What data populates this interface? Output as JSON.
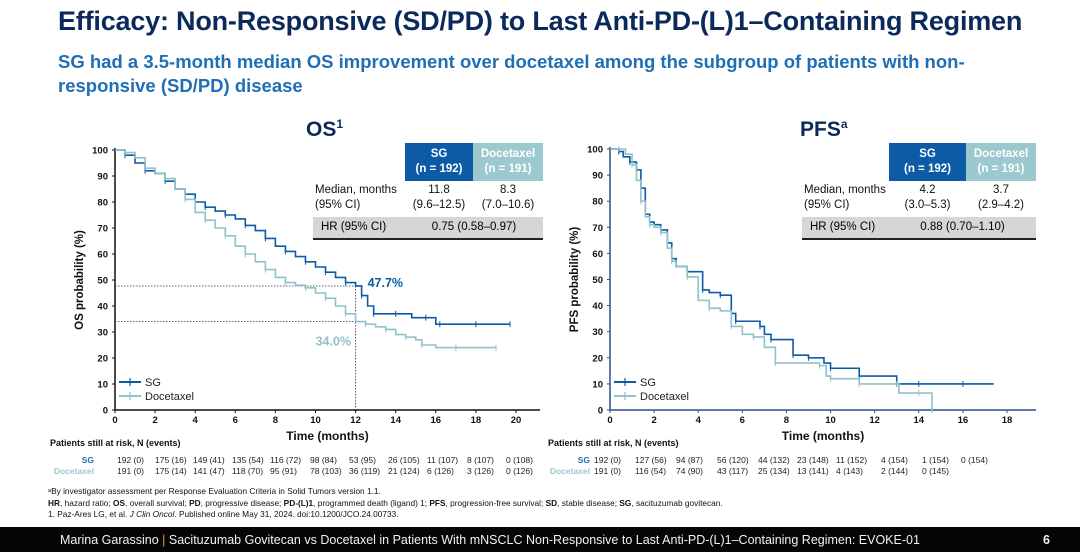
{
  "header": {
    "title": "Efficacy: Non-Responsive (SD/PD) to Last Anti-PD-(L)1–Containing Regimen",
    "subtitle": "SG had a 3.5-month median OS improvement over docetaxel among the subgroup of patients with non-responsive (SD/PD) disease"
  },
  "colors": {
    "sg": "#0d5aa7",
    "docetaxel": "#8fc2c9",
    "title": "#0b2a5b",
    "subtitle": "#1f6fb5"
  },
  "chart_data": [
    {
      "type": "line",
      "id": "os",
      "title": "OS",
      "title_sup": "1",
      "xlabel": "Time (months)",
      "ylabel": "OS probability (%)",
      "xlim": [
        0,
        20
      ],
      "ylim": [
        0,
        100
      ],
      "xticks": [
        "0",
        "2",
        "4",
        "6",
        "8",
        "10",
        "12",
        "14",
        "16",
        "18",
        "20"
      ],
      "yticks": [
        "0",
        "10",
        "20",
        "30",
        "40",
        "50",
        "60",
        "70",
        "80",
        "90",
        "100"
      ],
      "grid": false,
      "legend_position": "bottom-left",
      "legend": [
        "SG",
        "Docetaxel"
      ],
      "annotations": [
        {
          "text": "47.7%",
          "x": 12,
          "y": 47.7,
          "series": "SG"
        },
        {
          "text": "34.0%",
          "x": 12,
          "y": 34.0,
          "series": "Docetaxel"
        }
      ],
      "reference_x": 12,
      "series": [
        {
          "name": "SG",
          "x": [
            0,
            0.5,
            1,
            1.5,
            2,
            2.5,
            3,
            3.5,
            4,
            4.5,
            5,
            5.5,
            6,
            6.5,
            7,
            7.5,
            8,
            8.5,
            9,
            9.5,
            10,
            10.5,
            11,
            11.5,
            12,
            12.3,
            12.6,
            12.9,
            13.5,
            14,
            14.8,
            15.5,
            16,
            16.2,
            17,
            18,
            19,
            19.7
          ],
          "y": [
            100,
            98,
            95,
            92,
            91,
            88,
            85,
            83,
            80,
            78,
            76.5,
            75,
            73.5,
            71,
            69,
            66,
            63,
            61,
            59,
            57,
            55,
            53,
            51,
            49,
            47.7,
            44,
            40,
            37,
            37,
            37,
            35.5,
            35.5,
            33,
            33,
            33,
            33,
            33,
            33
          ]
        },
        {
          "name": "Docetaxel",
          "x": [
            0,
            0.5,
            1,
            1.5,
            2,
            2.5,
            3,
            3.5,
            4,
            4.5,
            5,
            5.5,
            6,
            6.5,
            7,
            7.5,
            8,
            8.5,
            9,
            9.5,
            10,
            10.5,
            11,
            11.5,
            12,
            12.5,
            13,
            13.5,
            14,
            14.5,
            15,
            15.3,
            16,
            17,
            18,
            19
          ],
          "y": [
            100,
            99,
            97,
            93,
            91,
            89,
            85,
            81,
            76,
            73,
            70,
            67,
            63,
            60,
            57,
            54,
            51,
            49,
            48,
            47,
            45,
            43,
            40,
            37,
            34.0,
            33,
            32,
            31,
            29,
            28,
            27,
            25,
            24,
            24,
            24,
            24
          ]
        }
      ],
      "table": {
        "col_headers": [
          {
            "label": "SG",
            "n": "(n = 192)"
          },
          {
            "label": "Docetaxel",
            "n": "(n = 191)"
          }
        ],
        "median_label": [
          "Median, months",
          "(95% CI)"
        ],
        "median_sg": [
          "11.8",
          "(9.6–12.5)"
        ],
        "median_doc": [
          "8.3",
          "(7.0–10.6)"
        ],
        "hr_label": "HR (95% CI)",
        "hr_value": "0.75 (0.58–0.97)"
      },
      "at_risk": {
        "title": "Patients still at risk, N (events)",
        "sg_label": "SG",
        "doc_label": "Docetaxel",
        "sg": [
          "192 (0)",
          "175 (16)",
          "149 (41)",
          "135 (54)",
          "116 (72)",
          "98 (84)",
          "53 (95)",
          "26 (105)",
          "11 (107)",
          "8 (107)",
          "0 (108)"
        ],
        "doc": [
          "191 (0)",
          "175 (14)",
          "141 (47)",
          "118 (70)",
          "95 (91)",
          "78 (103)",
          "36 (119)",
          "21 (124)",
          "6 (126)",
          "3 (126)",
          "0 (126)"
        ]
      }
    },
    {
      "type": "line",
      "id": "pfs",
      "title": "PFS",
      "title_sup": "a",
      "xlabel": "Time (months)",
      "ylabel": "PFS probability (%)",
      "xlim": [
        0,
        19
      ],
      "ylim": [
        0,
        100
      ],
      "xticks": [
        "0",
        "2",
        "4",
        "6",
        "8",
        "10",
        "12",
        "14",
        "16",
        "18"
      ],
      "yticks": [
        "0",
        "10",
        "20",
        "30",
        "40",
        "50",
        "60",
        "70",
        "80",
        "90",
        "100"
      ],
      "grid": false,
      "legend_position": "bottom-left",
      "legend": [
        "SG",
        "Docetaxel"
      ],
      "series": [
        {
          "name": "SG",
          "x": [
            0,
            0.4,
            0.6,
            0.9,
            1.2,
            1.4,
            1.6,
            1.8,
            2.0,
            2.3,
            2.6,
            2.8,
            3.0,
            3.5,
            4.0,
            4.2,
            4.5,
            5.0,
            5.5,
            5.7,
            6.0,
            6.8,
            7.0,
            7.3,
            8.0,
            8.3,
            8.5,
            9.0,
            9.7,
            10.0,
            11.0,
            11.3,
            12.0,
            13.0,
            13.2,
            14,
            15,
            16,
            17.4
          ],
          "y": [
            100,
            99,
            97,
            95,
            92,
            85,
            75,
            72,
            71,
            69,
            64,
            58,
            55,
            53,
            53,
            46,
            45,
            44,
            37,
            34,
            34,
            32,
            29,
            27,
            27,
            21,
            21,
            20,
            18,
            16,
            16,
            13,
            13,
            10,
            10,
            10,
            10,
            10,
            10
          ]
        },
        {
          "name": "Docetaxel",
          "x": [
            0,
            0.4,
            0.7,
            1.0,
            1.2,
            1.4,
            1.6,
            1.8,
            2.0,
            2.3,
            2.6,
            2.8,
            3.0,
            3.5,
            4.0,
            4.5,
            5.0,
            5.5,
            6.0,
            6.5,
            7.0,
            7.5,
            8.0,
            9.5,
            9.8,
            10.0,
            11.0,
            11.3,
            12.0,
            13.0,
            13.1,
            14.0,
            14.5,
            14.6
          ],
          "y": [
            100,
            100,
            98,
            94,
            88,
            80,
            74,
            71,
            70,
            68,
            62,
            57,
            55,
            51,
            42,
            39,
            38,
            32,
            29,
            28,
            24,
            18,
            18,
            17,
            13,
            12,
            12,
            10,
            10,
            10,
            6.5,
            6.5,
            6.5,
            0
          ]
        }
      ],
      "table": {
        "col_headers": [
          {
            "label": "SG",
            "n": "(n = 192)"
          },
          {
            "label": "Docetaxel",
            "n": "(n = 191)"
          }
        ],
        "median_label": [
          "Median, months",
          "(95% CI)"
        ],
        "median_sg": [
          "4.2",
          "(3.0–5.3)"
        ],
        "median_doc": [
          "3.7",
          "(2.9–4.2)"
        ],
        "hr_label": "HR (95% CI)",
        "hr_value": "0.88 (0.70–1.10)"
      },
      "at_risk": {
        "title": "Patients still at risk, N (events)",
        "sg_label": "SG",
        "doc_label": "Docetaxel",
        "sg": [
          "192 (0)",
          "127 (56)",
          "94 (87)",
          "56 (120)",
          "44 (132)",
          "23 (148)",
          "11 (152)",
          "4 (154)",
          "1 (154)",
          "0 (154)"
        ],
        "doc": [
          "191 (0)",
          "116 (54)",
          "74 (90)",
          "43 (117)",
          "25 (134)",
          "13 (141)",
          "4 (143)",
          "2 (144)",
          "0 (145)"
        ]
      }
    }
  ],
  "footnotes": {
    "line1": "ᵃBy investigator assessment per Response Evaluation Criteria in Solid Tumors version 1.1.",
    "line2_parts": [
      {
        "b": "HR",
        "t": ", hazard ratio; "
      },
      {
        "b": "OS",
        "t": ", overall survival; "
      },
      {
        "b": "PD",
        "t": ", progressive disease; "
      },
      {
        "b": "PD-(L)1",
        "t": ", programmed death (ligand) 1; "
      },
      {
        "b": "PFS",
        "t": ", progression-free survival; "
      },
      {
        "b": "SD",
        "t": ", stable disease; "
      },
      {
        "b": "SG",
        "t": ", sacituzumab govitecan."
      }
    ],
    "line3_pre": "1. Paz-Ares LG, et al. ",
    "line3_journal": "J Clin Oncol",
    "line3_post": ". Published online May 31, 2024. doi:10.1200/JCO.24.00733."
  },
  "footer": {
    "presenter": "Marina Garassino",
    "separator": "|",
    "text": "Sacituzumab Govitecan vs Docetaxel in Patients With mNSCLC Non-Responsive to Last Anti-PD-(L)1–Containing Regimen: EVOKE-01",
    "page": "6"
  }
}
